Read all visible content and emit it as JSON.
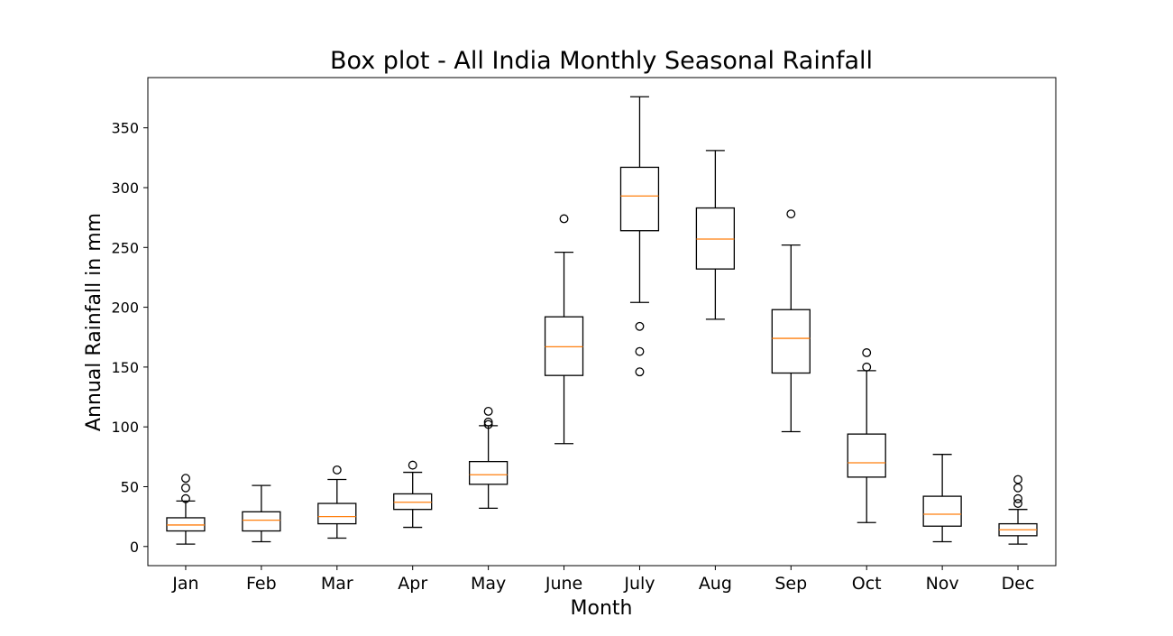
{
  "chart_data": {
    "type": "box",
    "title": "Box plot - All India Monthly Seasonal Rainfall",
    "xlabel": "Month",
    "ylabel": "Annual Rainfall in mm",
    "ylim": [
      -16,
      392
    ],
    "yticks": [
      0,
      50,
      100,
      150,
      200,
      250,
      300,
      350
    ],
    "grid": false,
    "colors": {
      "box": "#000000",
      "median": "#ff7f0e",
      "outlier": "#000000"
    },
    "categories": [
      "Jan",
      "Feb",
      "Mar",
      "Apr",
      "May",
      "June",
      "July",
      "Aug",
      "Sep",
      "Oct",
      "Nov",
      "Dec"
    ],
    "boxes": [
      {
        "label": "Jan",
        "whisker_low": 2,
        "q1": 13,
        "median": 18,
        "q3": 24,
        "whisker_high": 38,
        "outliers": [
          40,
          49,
          57
        ]
      },
      {
        "label": "Feb",
        "whisker_low": 4,
        "q1": 13,
        "median": 22,
        "q3": 29,
        "whisker_high": 51,
        "outliers": []
      },
      {
        "label": "Mar",
        "whisker_low": 7,
        "q1": 19,
        "median": 25,
        "q3": 36,
        "whisker_high": 56,
        "outliers": [
          64
        ]
      },
      {
        "label": "Apr",
        "whisker_low": 16,
        "q1": 31,
        "median": 37,
        "q3": 44,
        "whisker_high": 62,
        "outliers": [
          68
        ]
      },
      {
        "label": "May",
        "whisker_low": 32,
        "q1": 52,
        "median": 60,
        "q3": 71,
        "whisker_high": 101,
        "outliers": [
          102,
          104,
          113
        ]
      },
      {
        "label": "June",
        "whisker_low": 86,
        "q1": 143,
        "median": 167,
        "q3": 192,
        "whisker_high": 246,
        "outliers": [
          274
        ]
      },
      {
        "label": "July",
        "whisker_low": 204,
        "q1": 264,
        "median": 293,
        "q3": 317,
        "whisker_high": 376,
        "outliers": [
          146,
          163,
          184
        ]
      },
      {
        "label": "Aug",
        "whisker_low": 190,
        "q1": 232,
        "median": 257,
        "q3": 283,
        "whisker_high": 331,
        "outliers": []
      },
      {
        "label": "Sep",
        "whisker_low": 96,
        "q1": 145,
        "median": 174,
        "q3": 198,
        "whisker_high": 252,
        "outliers": [
          278
        ]
      },
      {
        "label": "Oct",
        "whisker_low": 20,
        "q1": 58,
        "median": 70,
        "q3": 94,
        "whisker_high": 147,
        "outliers": [
          150,
          162
        ]
      },
      {
        "label": "Nov",
        "whisker_low": 4,
        "q1": 17,
        "median": 27,
        "q3": 42,
        "whisker_high": 77,
        "outliers": []
      },
      {
        "label": "Dec",
        "whisker_low": 2,
        "q1": 9,
        "median": 14,
        "q3": 19,
        "whisker_high": 31,
        "outliers": [
          36,
          40,
          49,
          56
        ]
      }
    ]
  }
}
